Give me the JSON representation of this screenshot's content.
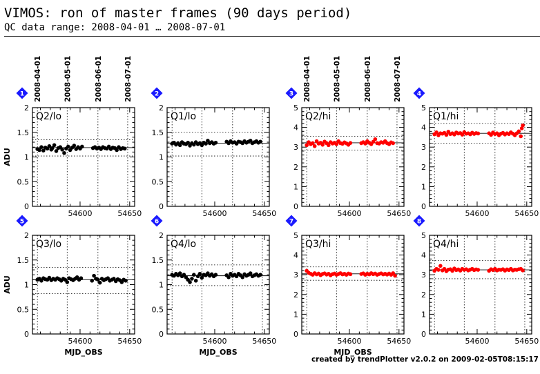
{
  "header": {
    "title": "VIMOS: ron of master frames (90 days period)",
    "subtitle": "QC data range: 2008-04-01 … 2008-07-01"
  },
  "footer": {
    "credit": "created by trendPlotter v2.0.2 on 2009-02-05T08:15:17"
  },
  "colors": {
    "lo_points": "#000000",
    "hi_points": "#ff0000",
    "badge": "#1a1aff"
  },
  "chart_data": [
    {
      "type": "scatter",
      "panel_id": "1",
      "label": "Q2/lo",
      "ylabel": "ADU",
      "xlabel": "",
      "xlim": [
        54552,
        54648
      ],
      "ylim": [
        0,
        2
      ],
      "x_ticks": [
        54600,
        54650
      ],
      "y_ticks": [
        0,
        0.5,
        1,
        1.5,
        2
      ],
      "y_tick_labels": [
        "0",
        "0.5",
        "1",
        "1.5",
        "2"
      ],
      "top_dates": [
        "2008-04-01",
        "2008-05-01",
        "2008-06-01",
        "2008-07-01"
      ],
      "top_date_mjd": [
        54557,
        54587,
        54618,
        54648
      ],
      "hlines": {
        "mean": 1.19,
        "upper": 1.35,
        "lower": 1.02
      },
      "grid": "dotted",
      "point_color": "#000000",
      "x": [
        54557,
        54559,
        54561,
        54563,
        54565,
        54567,
        54569,
        54571,
        54572,
        54574,
        54576,
        54578,
        54580,
        54582,
        54584,
        54586,
        54588,
        54590,
        54592,
        54594,
        54596,
        54598,
        54600,
        54602,
        54613,
        54615,
        54617,
        54619,
        54621,
        54623,
        54625,
        54627,
        54629,
        54631,
        54633,
        54635,
        54637,
        54639,
        54641,
        54643,
        54645
      ],
      "y": [
        1.16,
        1.14,
        1.2,
        1.13,
        1.19,
        1.17,
        1.22,
        1.15,
        1.18,
        1.24,
        1.12,
        1.18,
        1.2,
        1.15,
        1.08,
        1.17,
        1.21,
        1.14,
        1.19,
        1.23,
        1.16,
        1.2,
        1.17,
        1.21,
        1.18,
        1.2,
        1.17,
        1.19,
        1.16,
        1.2,
        1.18,
        1.17,
        1.21,
        1.16,
        1.19,
        1.18,
        1.14,
        1.2,
        1.16,
        1.18,
        1.17
      ]
    },
    {
      "type": "scatter",
      "panel_id": "2",
      "label": "Q1/lo",
      "ylabel": "",
      "xlabel": "",
      "xlim": [
        54552,
        54648
      ],
      "ylim": [
        0,
        2
      ],
      "x_ticks": [
        54600,
        54650
      ],
      "y_ticks": [
        0,
        0.5,
        1,
        1.5,
        2
      ],
      "y_tick_labels": [
        "0",
        "0.5",
        "1",
        "1.5",
        "2"
      ],
      "top_dates": [],
      "top_date_mjd": [
        54557,
        54587,
        54618,
        54648
      ],
      "hlines": {
        "mean": 1.28,
        "upper": 1.5,
        "lower": 1.02
      },
      "grid": "dotted",
      "point_color": "#000000",
      "x": [
        54557,
        54559,
        54561,
        54563,
        54565,
        54567,
        54569,
        54571,
        54573,
        54575,
        54577,
        54579,
        54581,
        54583,
        54585,
        54587,
        54589,
        54591,
        54593,
        54595,
        54597,
        54599,
        54601,
        54612,
        54614,
        54616,
        54618,
        54620,
        54622,
        54624,
        54626,
        54628,
        54630,
        54632,
        54634,
        54636,
        54638,
        54640,
        54642,
        54644,
        54646
      ],
      "y": [
        1.27,
        1.29,
        1.25,
        1.28,
        1.24,
        1.3,
        1.27,
        1.26,
        1.29,
        1.23,
        1.28,
        1.25,
        1.3,
        1.26,
        1.28,
        1.24,
        1.29,
        1.27,
        1.33,
        1.28,
        1.3,
        1.27,
        1.29,
        1.31,
        1.28,
        1.32,
        1.29,
        1.3,
        1.27,
        1.31,
        1.3,
        1.28,
        1.32,
        1.29,
        1.31,
        1.33,
        1.28,
        1.3,
        1.32,
        1.29,
        1.31
      ]
    },
    {
      "type": "scatter",
      "panel_id": "3",
      "label": "Q2/hi",
      "ylabel": "",
      "xlabel": "",
      "xlim": [
        54552,
        54648
      ],
      "ylim": [
        0,
        5
      ],
      "x_ticks": [
        54600,
        54650
      ],
      "y_ticks": [
        0,
        1,
        2,
        3,
        4,
        5
      ],
      "y_tick_labels": [
        "0",
        "1",
        "2",
        "3",
        "4",
        "5"
      ],
      "top_dates": [
        "2008-04-01",
        "2008-05-01",
        "2008-06-01",
        "2008-07-01"
      ],
      "top_date_mjd": [
        54557,
        54587,
        54618,
        54648
      ],
      "hlines": {
        "mean": 3.22,
        "upper": 3.55,
        "lower": 2.85
      },
      "grid": "dotted",
      "point_color": "#ff0000",
      "x": [
        54557,
        54559,
        54561,
        54563,
        54565,
        54567,
        54569,
        54571,
        54573,
        54575,
        54577,
        54579,
        54581,
        54583,
        54585,
        54587,
        54589,
        54591,
        54593,
        54595,
        54597,
        54599,
        54601,
        54612,
        54614,
        54616,
        54618,
        54620,
        54622,
        54624,
        54626,
        54628,
        54630,
        54632,
        54634,
        54636,
        54638,
        54640,
        54642,
        54644
      ],
      "y": [
        3.1,
        3.25,
        3.15,
        3.2,
        3.05,
        3.3,
        3.18,
        3.22,
        3.12,
        3.28,
        3.2,
        3.1,
        3.25,
        3.18,
        3.22,
        3.15,
        3.3,
        3.2,
        3.17,
        3.24,
        3.19,
        3.12,
        3.21,
        3.2,
        3.25,
        3.18,
        3.3,
        3.22,
        3.15,
        3.27,
        3.4,
        3.2,
        3.18,
        3.25,
        3.22,
        3.3,
        3.2,
        3.15,
        3.24,
        3.2
      ]
    },
    {
      "type": "scatter",
      "panel_id": "4",
      "label": "Q1/hi",
      "ylabel": "",
      "xlabel": "",
      "xlim": [
        54552,
        54648
      ],
      "ylim": [
        0,
        5
      ],
      "x_ticks": [
        54600,
        54650
      ],
      "y_ticks": [
        0,
        1,
        2,
        3,
        4,
        5
      ],
      "y_tick_labels": [
        "0",
        "1",
        "2",
        "3",
        "4",
        "5"
      ],
      "top_dates": [],
      "top_date_mjd": [
        54557,
        54587,
        54618,
        54648
      ],
      "hlines": {
        "mean": 3.7,
        "upper": 4.2,
        "lower": 3.2
      },
      "grid": "dotted",
      "point_color": "#ff0000",
      "x": [
        54557,
        54559,
        54561,
        54563,
        54565,
        54567,
        54569,
        54571,
        54573,
        54575,
        54577,
        54579,
        54581,
        54583,
        54585,
        54587,
        54589,
        54591,
        54593,
        54595,
        54597,
        54599,
        54601,
        54612,
        54614,
        54616,
        54618,
        54620,
        54622,
        54624,
        54626,
        54628,
        54630,
        54632,
        54634,
        54636,
        54638,
        54640,
        54642,
        54644,
        54645,
        54646
      ],
      "y": [
        3.65,
        3.75,
        3.6,
        3.7,
        3.68,
        3.72,
        3.62,
        3.78,
        3.66,
        3.7,
        3.64,
        3.74,
        3.69,
        3.71,
        3.63,
        3.76,
        3.68,
        3.7,
        3.65,
        3.73,
        3.67,
        3.71,
        3.69,
        3.7,
        3.62,
        3.74,
        3.66,
        3.7,
        3.6,
        3.68,
        3.72,
        3.64,
        3.7,
        3.66,
        3.75,
        3.68,
        3.6,
        3.7,
        3.8,
        3.55,
        3.95,
        4.1
      ]
    },
    {
      "type": "scatter",
      "panel_id": "5",
      "label": "Q3/lo",
      "ylabel": "ADU",
      "xlabel": "MJD_OBS",
      "xlim": [
        54552,
        54648
      ],
      "ylim": [
        0,
        2
      ],
      "x_ticks": [
        54600,
        54650
      ],
      "y_ticks": [
        0,
        0.5,
        1,
        1.5,
        2
      ],
      "y_tick_labels": [
        "0",
        "0.5",
        "1",
        "1.5",
        "2"
      ],
      "top_dates": [],
      "top_date_mjd": [
        54557,
        54587,
        54618,
        54648
      ],
      "hlines": {
        "mean": 1.1,
        "upper": 1.35,
        "lower": 0.82
      },
      "grid": "dotted",
      "point_color": "#000000",
      "x": [
        54557,
        54559,
        54561,
        54563,
        54565,
        54567,
        54569,
        54571,
        54573,
        54575,
        54577,
        54579,
        54581,
        54583,
        54585,
        54587,
        54589,
        54591,
        54593,
        54595,
        54597,
        54599,
        54601,
        54612,
        54614,
        54616,
        54618,
        54620,
        54622,
        54624,
        54626,
        54628,
        54630,
        54632,
        54634,
        54636,
        54638,
        54640,
        54642,
        54644,
        54646
      ],
      "y": [
        1.1,
        1.12,
        1.08,
        1.13,
        1.11,
        1.1,
        1.14,
        1.09,
        1.12,
        1.1,
        1.13,
        1.11,
        1.08,
        1.12,
        1.1,
        1.05,
        1.13,
        1.11,
        1.09,
        1.12,
        1.15,
        1.1,
        1.13,
        1.08,
        1.18,
        1.12,
        1.1,
        1.04,
        1.12,
        1.09,
        1.11,
        1.13,
        1.08,
        1.1,
        1.12,
        1.07,
        1.11,
        1.09,
        1.05,
        1.1,
        1.08
      ]
    },
    {
      "type": "scatter",
      "panel_id": "6",
      "label": "Q4/lo",
      "ylabel": "",
      "xlabel": "MJD_OBS",
      "xlim": [
        54552,
        54648
      ],
      "ylim": [
        0,
        2
      ],
      "x_ticks": [
        54600,
        54650
      ],
      "y_ticks": [
        0,
        0.5,
        1,
        1.5,
        2
      ],
      "y_tick_labels": [
        "0",
        "0.5",
        "1",
        "1.5",
        "2"
      ],
      "top_dates": [],
      "top_date_mjd": [
        54557,
        54587,
        54618,
        54648
      ],
      "hlines": {
        "mean": 1.18,
        "upper": 1.4,
        "lower": 0.98
      },
      "grid": "dotted",
      "point_color": "#000000",
      "x": [
        54557,
        54559,
        54561,
        54563,
        54565,
        54567,
        54569,
        54571,
        54573,
        54575,
        54577,
        54579,
        54581,
        54583,
        54585,
        54587,
        54589,
        54591,
        54593,
        54595,
        54597,
        54599,
        54601,
        54612,
        54614,
        54616,
        54618,
        54620,
        54622,
        54624,
        54626,
        54628,
        54630,
        54632,
        54634,
        54636,
        54638,
        54640,
        54642,
        54644,
        54646
      ],
      "y": [
        1.2,
        1.18,
        1.22,
        1.19,
        1.23,
        1.17,
        1.2,
        1.15,
        1.1,
        1.05,
        1.12,
        1.2,
        1.08,
        1.17,
        1.22,
        1.14,
        1.2,
        1.19,
        1.23,
        1.18,
        1.21,
        1.17,
        1.2,
        1.19,
        1.15,
        1.22,
        1.18,
        1.2,
        1.17,
        1.22,
        1.19,
        1.15,
        1.21,
        1.18,
        1.2,
        1.23,
        1.17,
        1.19,
        1.21,
        1.18,
        1.2
      ]
    },
    {
      "type": "scatter",
      "panel_id": "7",
      "label": "Q3/hi",
      "ylabel": "",
      "xlabel": "MJD_OBS",
      "xlim": [
        54552,
        54648
      ],
      "ylim": [
        0,
        5
      ],
      "x_ticks": [
        54600,
        54650
      ],
      "y_ticks": [
        0,
        1,
        2,
        3,
        4,
        5
      ],
      "y_tick_labels": [
        "0",
        "1",
        "2",
        "3",
        "4",
        "5"
      ],
      "top_dates": [],
      "top_date_mjd": [
        54557,
        54587,
        54618,
        54648
      ],
      "hlines": {
        "mean": 3.05,
        "upper": 3.4,
        "lower": 2.72
      },
      "grid": "dotted",
      "point_color": "#ff0000",
      "x": [
        54557,
        54559,
        54561,
        54563,
        54565,
        54567,
        54569,
        54571,
        54573,
        54575,
        54577,
        54579,
        54581,
        54583,
        54585,
        54587,
        54589,
        54591,
        54593,
        54595,
        54597,
        54599,
        54601,
        54612,
        54614,
        54616,
        54618,
        54620,
        54622,
        54624,
        54626,
        54628,
        54630,
        54632,
        54634,
        54636,
        54638,
        54640,
        54642,
        54644,
        54646
      ],
      "y": [
        3.2,
        3.1,
        3.05,
        3.0,
        3.08,
        3.02,
        3.06,
        2.98,
        3.04,
        3.07,
        3.01,
        3.05,
        2.97,
        3.03,
        3.06,
        3.0,
        3.04,
        3.08,
        3.02,
        3.05,
        3.0,
        3.06,
        3.03,
        3.04,
        3.07,
        3.0,
        3.05,
        3.02,
        3.08,
        3.03,
        3.06,
        3.0,
        3.04,
        3.07,
        3.02,
        3.05,
        3.01,
        3.06,
        3.0,
        3.08,
        2.95
      ]
    },
    {
      "type": "scatter",
      "panel_id": "8",
      "label": "Q4/hi",
      "ylabel": "",
      "xlabel": "",
      "xlim": [
        54552,
        54648
      ],
      "ylim": [
        0,
        5
      ],
      "x_ticks": [
        54600,
        54650
      ],
      "y_ticks": [
        0,
        1,
        2,
        3,
        4,
        5
      ],
      "y_tick_labels": [
        "0",
        "1",
        "2",
        "3",
        "4",
        "5"
      ],
      "top_dates": [],
      "top_date_mjd": [
        54557,
        54587,
        54618,
        54648
      ],
      "hlines": {
        "mean": 3.25,
        "upper": 3.72,
        "lower": 2.8
      },
      "grid": "dotted",
      "point_color": "#ff0000",
      "x": [
        54557,
        54559,
        54561,
        54563,
        54565,
        54567,
        54569,
        54571,
        54573,
        54575,
        54577,
        54579,
        54581,
        54583,
        54585,
        54587,
        54589,
        54591,
        54593,
        54595,
        54597,
        54599,
        54601,
        54612,
        54614,
        54616,
        54618,
        54620,
        54622,
        54624,
        54626,
        54628,
        54630,
        54632,
        54634,
        54636,
        54638,
        54640,
        54642,
        54644,
        54646
      ],
      "y": [
        3.2,
        3.3,
        3.25,
        3.45,
        3.22,
        3.3,
        3.18,
        3.26,
        3.28,
        3.2,
        3.32,
        3.24,
        3.27,
        3.21,
        3.3,
        3.25,
        3.28,
        3.22,
        3.26,
        3.3,
        3.24,
        3.27,
        3.25,
        3.2,
        3.28,
        3.24,
        3.3,
        3.22,
        3.26,
        3.25,
        3.28,
        3.21,
        3.27,
        3.24,
        3.3,
        3.22,
        3.26,
        3.25,
        3.28,
        3.3,
        3.22
      ]
    }
  ]
}
